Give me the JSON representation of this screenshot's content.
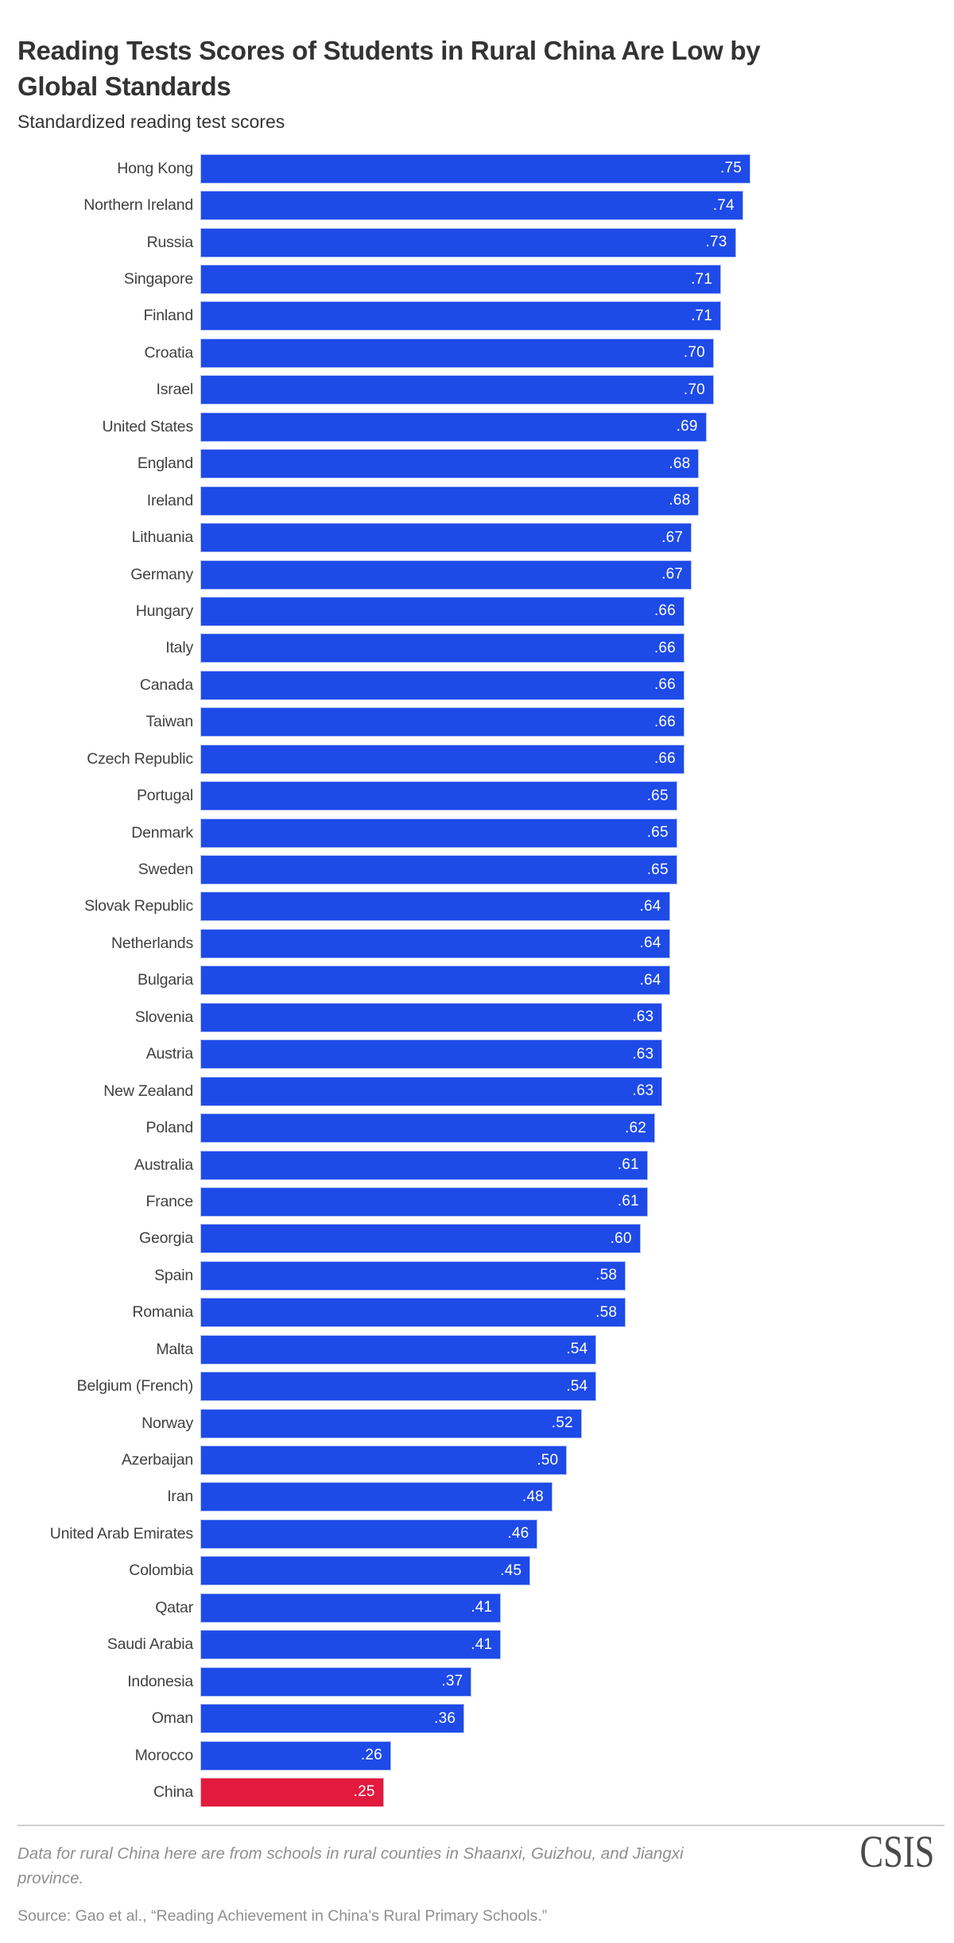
{
  "page": {
    "title": "Reading Tests Scores of Students in Rural China Are Low by\nGlobal Standards",
    "subtitle": "Standardized reading test scores"
  },
  "chart_data": {
    "type": "bar",
    "orientation": "horizontal",
    "title": "Reading Tests Scores of Students in Rural China Are Low by Global Standards",
    "subtitle": "Standardized reading test scores",
    "xlabel": "",
    "ylabel": "",
    "xlim": [
      0,
      0.75
    ],
    "grid": false,
    "legend": "none",
    "bar_color": "#1e4ae8",
    "highlight_color": "#e21a3d",
    "highlight_category": "China",
    "categories": [
      "Hong Kong",
      "Northern Ireland",
      "Russia",
      "Singapore",
      "Finland",
      "Croatia",
      "Israel",
      "United States",
      "England",
      "Ireland",
      "Lithuania",
      "Germany",
      "Hungary",
      "Italy",
      "Canada",
      "Taiwan",
      "Czech Republic",
      "Portugal",
      "Denmark",
      "Sweden",
      "Slovak Republic",
      "Netherlands",
      "Bulgaria",
      "Slovenia",
      "Austria",
      "New Zealand",
      "Poland",
      "Australia",
      "France",
      "Georgia",
      "Spain",
      "Romania",
      "Malta",
      "Belgium (French)",
      "Norway",
      "Azerbaijan",
      "Iran",
      "United Arab Emirates",
      "Colombia",
      "Qatar",
      "Saudi Arabia",
      "Indonesia",
      "Oman",
      "Morocco",
      "China"
    ],
    "values": [
      0.75,
      0.74,
      0.73,
      0.71,
      0.71,
      0.7,
      0.7,
      0.69,
      0.68,
      0.68,
      0.67,
      0.67,
      0.66,
      0.66,
      0.66,
      0.66,
      0.66,
      0.65,
      0.65,
      0.65,
      0.64,
      0.64,
      0.64,
      0.63,
      0.63,
      0.63,
      0.62,
      0.61,
      0.61,
      0.6,
      0.58,
      0.58,
      0.54,
      0.54,
      0.52,
      0.5,
      0.48,
      0.46,
      0.45,
      0.41,
      0.41,
      0.37,
      0.36,
      0.26,
      0.25
    ],
    "value_labels": [
      ".75",
      ".74",
      ".73",
      ".71",
      ".71",
      ".70",
      ".70",
      ".69",
      ".68",
      ".68",
      ".67",
      ".67",
      ".66",
      ".66",
      ".66",
      ".66",
      ".66",
      ".65",
      ".65",
      ".65",
      ".64",
      ".64",
      ".64",
      ".63",
      ".63",
      ".63",
      ".62",
      ".61",
      ".61",
      ".60",
      ".58",
      ".58",
      ".54",
      ".54",
      ".52",
      ".50",
      ".48",
      ".46",
      ".45",
      ".41",
      ".41",
      ".37",
      ".36",
      ".26",
      ".25"
    ]
  },
  "footer": {
    "note": "Data for rural China here are from schools in rural counties in Shaanxi, Guizhou, and Jiangxi province.",
    "source": "Source: Gao et al., “Reading Achievement in China’s Rural Primary Schools.”",
    "logo_text": "CSIS"
  },
  "colors": {
    "bar_blue": "#1e4ae8",
    "bar_red": "#e21a3d",
    "title_text": "#333333",
    "label_text": "#404040",
    "value_text": "#ffffff",
    "footer_text": "#8f8f8f",
    "divider": "#cfcfcf",
    "logo_text": "#4a4a4d"
  }
}
